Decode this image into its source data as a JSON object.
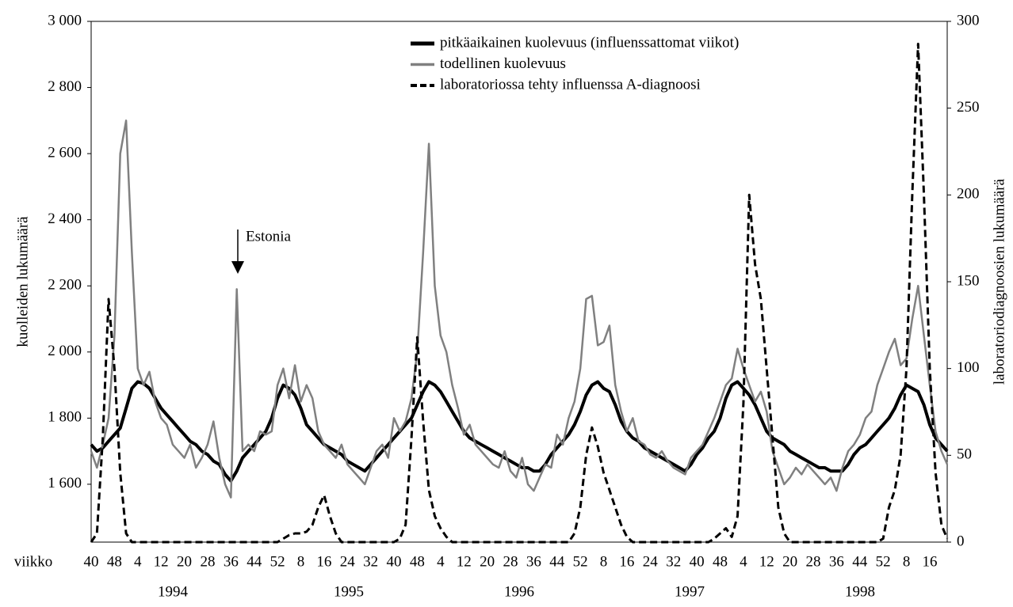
{
  "chart_data": {
    "type": "line",
    "x_label": "viikko",
    "ylabel": "kuolleiden lukumäärä",
    "y2label": "laboratoriodiagnoosien lukumäärä",
    "annotation": "Estonia",
    "year_labels": [
      "1994",
      "1995",
      "1996",
      "1997",
      "1998"
    ],
    "categories": [
      "40",
      null,
      null,
      null,
      "48",
      null,
      null,
      null,
      "4",
      null,
      null,
      null,
      "12",
      null,
      null,
      null,
      "20",
      null,
      null,
      null,
      "28",
      null,
      null,
      null,
      "36",
      null,
      null,
      null,
      "44",
      null,
      null,
      null,
      "52",
      null,
      null,
      null,
      "8",
      null,
      null,
      null,
      "16",
      null,
      null,
      null,
      "24",
      null,
      null,
      null,
      "32",
      null,
      null,
      null,
      "40",
      null,
      null,
      null,
      "48",
      null,
      null,
      null,
      "4",
      null,
      null,
      null,
      "12",
      null,
      null,
      null,
      "20",
      null,
      null,
      null,
      "28",
      null,
      null,
      null,
      "36",
      null,
      null,
      null,
      "44",
      null,
      null,
      null,
      "52",
      null,
      null,
      null,
      "8",
      null,
      null,
      null,
      "16",
      null,
      null,
      null,
      "24",
      null,
      null,
      null,
      "32",
      null,
      null,
      null,
      "40",
      null,
      null,
      null,
      "48",
      null,
      null,
      null,
      "4",
      null,
      null,
      null,
      "12",
      null,
      null,
      null,
      "20",
      null,
      null,
      null,
      "28",
      null,
      null,
      null,
      "36",
      null,
      null,
      null,
      "44",
      null,
      null,
      null,
      "52",
      null,
      null,
      null,
      "8",
      null,
      null,
      null,
      "16",
      null,
      null,
      null
    ],
    "series": [
      {
        "name": "pitkäaikainen kuolevuus (influenssattomat viikot)",
        "color": "#000000",
        "style": "solid",
        "width": 4,
        "values": [
          1720,
          1700,
          1710,
          1730,
          1750,
          1770,
          1830,
          1890,
          1910,
          1905,
          1890,
          1860,
          1830,
          1810,
          1790,
          1770,
          1750,
          1730,
          1720,
          1700,
          1690,
          1670,
          1660,
          1630,
          1610,
          1640,
          1680,
          1700,
          1720,
          1740,
          1760,
          1800,
          1860,
          1900,
          1890,
          1870,
          1830,
          1780,
          1760,
          1740,
          1720,
          1710,
          1700,
          1690,
          1670,
          1660,
          1650,
          1640,
          1660,
          1680,
          1700,
          1720,
          1740,
          1760,
          1780,
          1800,
          1840,
          1880,
          1910,
          1900,
          1880,
          1850,
          1820,
          1790,
          1760,
          1740,
          1730,
          1720,
          1710,
          1700,
          1690,
          1680,
          1670,
          1660,
          1650,
          1650,
          1640,
          1640,
          1660,
          1690,
          1710,
          1730,
          1750,
          1780,
          1820,
          1870,
          1900,
          1910,
          1890,
          1880,
          1840,
          1790,
          1760,
          1740,
          1730,
          1710,
          1700,
          1690,
          1680,
          1670,
          1660,
          1650,
          1640,
          1660,
          1690,
          1710,
          1740,
          1760,
          1800,
          1860,
          1900,
          1910,
          1890,
          1870,
          1840,
          1800,
          1760,
          1740,
          1730,
          1720,
          1700,
          1690,
          1680,
          1670,
          1660,
          1650,
          1650,
          1640,
          1640,
          1640,
          1660,
          1690,
          1710,
          1720,
          1740,
          1760,
          1780,
          1800,
          1830,
          1870,
          1900,
          1890,
          1880,
          1840,
          1780,
          1740,
          1720,
          1700
        ]
      },
      {
        "name": "todellinen kuolevuus",
        "color": "#808080",
        "style": "solid",
        "width": 2.5,
        "values": [
          1700,
          1650,
          1720,
          1800,
          2050,
          2600,
          2700,
          2300,
          1950,
          1900,
          1940,
          1850,
          1800,
          1780,
          1720,
          1700,
          1680,
          1720,
          1650,
          1680,
          1720,
          1790,
          1680,
          1600,
          1560,
          2190,
          1700,
          1720,
          1700,
          1760,
          1750,
          1760,
          1900,
          1950,
          1860,
          1960,
          1850,
          1900,
          1860,
          1760,
          1720,
          1700,
          1680,
          1720,
          1660,
          1640,
          1620,
          1600,
          1650,
          1700,
          1720,
          1680,
          1800,
          1760,
          1790,
          1860,
          2000,
          2300,
          2630,
          2200,
          2050,
          2000,
          1900,
          1830,
          1750,
          1780,
          1720,
          1700,
          1680,
          1660,
          1650,
          1700,
          1640,
          1620,
          1680,
          1600,
          1580,
          1620,
          1660,
          1650,
          1750,
          1720,
          1800,
          1850,
          1950,
          2160,
          2170,
          2020,
          2030,
          2080,
          1900,
          1820,
          1760,
          1800,
          1730,
          1720,
          1690,
          1680,
          1700,
          1670,
          1650,
          1640,
          1630,
          1680,
          1700,
          1720,
          1760,
          1800,
          1850,
          1900,
          1920,
          2010,
          1950,
          1900,
          1850,
          1880,
          1820,
          1700,
          1650,
          1600,
          1620,
          1650,
          1630,
          1660,
          1640,
          1620,
          1600,
          1620,
          1580,
          1650,
          1700,
          1720,
          1750,
          1800,
          1820,
          1900,
          1950,
          2000,
          2040,
          1960,
          1980,
          2100,
          2200,
          2050,
          1900,
          1760,
          1700,
          1660
        ]
      },
      {
        "name": "laboratoriossa tehty influenssa A-diagnoosi",
        "color": "#000000",
        "style": "dashed",
        "width": 3,
        "axis": "y2",
        "values": [
          0,
          5,
          60,
          140,
          100,
          40,
          5,
          0,
          0,
          0,
          0,
          0,
          0,
          0,
          0,
          0,
          0,
          0,
          0,
          0,
          0,
          0,
          0,
          0,
          0,
          0,
          0,
          0,
          0,
          0,
          0,
          0,
          0,
          2,
          4,
          5,
          5,
          6,
          10,
          20,
          27,
          15,
          5,
          0,
          0,
          0,
          0,
          0,
          0,
          0,
          0,
          0,
          0,
          2,
          10,
          60,
          118,
          70,
          30,
          15,
          8,
          3,
          0,
          0,
          0,
          0,
          0,
          0,
          0,
          0,
          0,
          0,
          0,
          0,
          0,
          0,
          0,
          0,
          0,
          0,
          0,
          0,
          0,
          5,
          20,
          50,
          66,
          55,
          40,
          30,
          20,
          10,
          3,
          0,
          0,
          0,
          0,
          0,
          0,
          0,
          0,
          0,
          0,
          0,
          0,
          0,
          0,
          2,
          5,
          8,
          3,
          15,
          80,
          200,
          160,
          140,
          100,
          60,
          20,
          5,
          0,
          0,
          0,
          0,
          0,
          0,
          0,
          0,
          0,
          0,
          0,
          0,
          0,
          0,
          0,
          0,
          2,
          20,
          30,
          50,
          100,
          200,
          287,
          200,
          100,
          40,
          10,
          2
        ]
      }
    ],
    "ylim": [
      1425,
      3000
    ],
    "yticks": [
      {
        "value": 1600,
        "label": "1 600"
      },
      {
        "value": 1800,
        "label": "1 800"
      },
      {
        "value": 2000,
        "label": "2 000"
      },
      {
        "value": 2200,
        "label": "2 200"
      },
      {
        "value": 2400,
        "label": "2 400"
      },
      {
        "value": 2600,
        "label": "2 600"
      },
      {
        "value": 2800,
        "label": "2 800"
      },
      {
        "value": 3000,
        "label": "3 000"
      }
    ],
    "y2lim": [
      0,
      300
    ],
    "y2ticks": [
      0,
      50,
      100,
      150,
      200,
      250,
      300
    ],
    "legend": "top"
  }
}
